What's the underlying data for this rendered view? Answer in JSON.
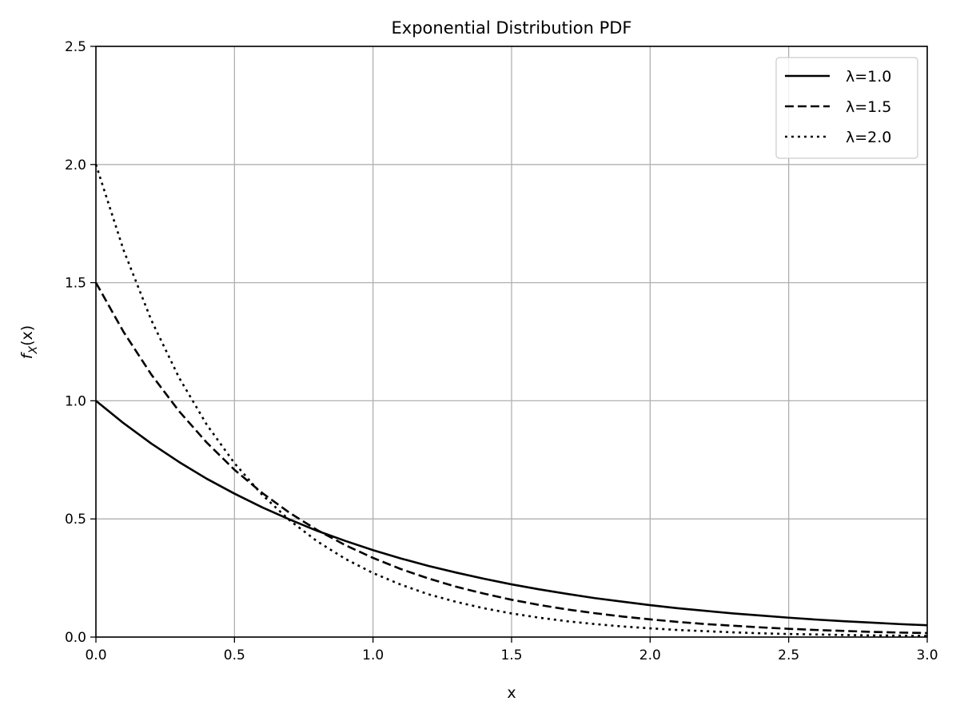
{
  "chart_data": {
    "type": "line",
    "title": "Exponential Distribution PDF",
    "xlabel": "x",
    "ylabel": "f_X(x)",
    "ylabel_parts": {
      "main": "f",
      "sub": "X",
      "arg": "(x)"
    },
    "xlim": [
      0.0,
      3.0
    ],
    "ylim": [
      0.0,
      2.5
    ],
    "x_ticks": [
      0.0,
      0.5,
      1.0,
      1.5,
      2.0,
      2.5,
      3.0
    ],
    "x_tick_labels": [
      "0.0",
      "0.5",
      "1.0",
      "1.5",
      "2.0",
      "2.5",
      "3.0"
    ],
    "y_ticks": [
      0.0,
      0.5,
      1.0,
      1.5,
      2.0,
      2.5
    ],
    "y_tick_labels": [
      "0.0",
      "0.5",
      "1.0",
      "1.5",
      "2.0",
      "2.5"
    ],
    "grid": true,
    "legend_position": "top-right",
    "x": [
      0.0,
      0.1,
      0.2,
      0.3,
      0.4,
      0.5,
      0.6,
      0.7,
      0.8,
      0.9,
      1.0,
      1.1,
      1.2,
      1.3,
      1.4,
      1.5,
      1.6,
      1.7,
      1.8,
      1.9,
      2.0,
      2.1,
      2.2,
      2.3,
      2.4,
      2.5,
      2.6,
      2.7,
      2.8,
      2.9,
      3.0
    ],
    "series": [
      {
        "name": "λ=1.0",
        "color": "#000000",
        "line_style": "solid",
        "values": [
          1.0,
          0.905,
          0.819,
          0.741,
          0.67,
          0.607,
          0.549,
          0.497,
          0.449,
          0.407,
          0.368,
          0.333,
          0.301,
          0.273,
          0.247,
          0.223,
          0.202,
          0.183,
          0.165,
          0.15,
          0.135,
          0.122,
          0.111,
          0.1,
          0.091,
          0.082,
          0.074,
          0.067,
          0.061,
          0.055,
          0.05
        ]
      },
      {
        "name": "λ=1.5",
        "color": "#000000",
        "line_style": "dashed",
        "values": [
          1.5,
          1.291,
          1.111,
          0.956,
          0.823,
          0.708,
          0.61,
          0.525,
          0.452,
          0.389,
          0.335,
          0.288,
          0.248,
          0.213,
          0.184,
          0.158,
          0.136,
          0.117,
          0.101,
          0.087,
          0.075,
          0.064,
          0.055,
          0.048,
          0.041,
          0.035,
          0.03,
          0.026,
          0.022,
          0.019,
          0.017
        ]
      },
      {
        "name": "λ=2.0",
        "color": "#000000",
        "line_style": "dotted",
        "values": [
          2.0,
          1.637,
          1.341,
          1.098,
          0.899,
          0.736,
          0.602,
          0.493,
          0.404,
          0.331,
          0.271,
          0.222,
          0.181,
          0.149,
          0.122,
          0.1,
          0.082,
          0.067,
          0.055,
          0.045,
          0.037,
          0.03,
          0.025,
          0.02,
          0.016,
          0.013,
          0.011,
          0.009,
          0.007,
          0.006,
          0.005
        ]
      }
    ]
  }
}
